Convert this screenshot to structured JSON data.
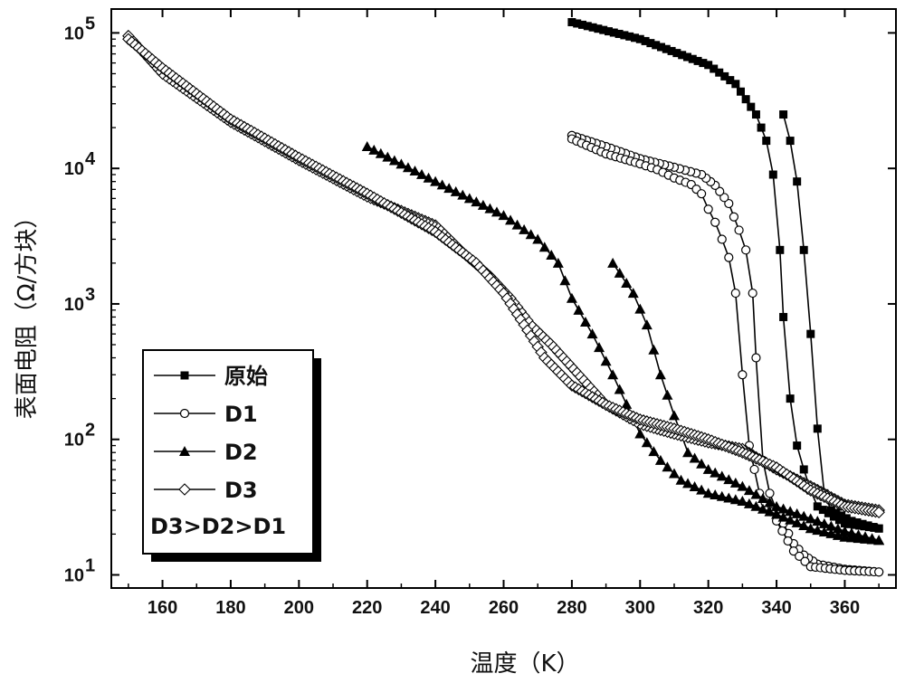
{
  "chart_data": {
    "type": "line",
    "xlabel": "温度（K）",
    "ylabel": "表面电阻（Ω/方块）",
    "xlim": [
      145,
      375
    ],
    "ylim": [
      8,
      150000
    ],
    "yscale": "log",
    "xticks": [
      160,
      180,
      200,
      220,
      240,
      260,
      280,
      300,
      320,
      340,
      360
    ],
    "yticks": [
      {
        "value": 10,
        "base": "10",
        "exp": "1"
      },
      {
        "value": 100,
        "base": "10",
        "exp": "2"
      },
      {
        "value": 1000,
        "base": "10",
        "exp": "3"
      },
      {
        "value": 10000,
        "base": "10",
        "exp": "4"
      },
      {
        "value": 100000,
        "base": "10",
        "exp": "5"
      }
    ],
    "legend": {
      "position": "lower-left",
      "note": "D3>D2>D1"
    },
    "series": [
      {
        "name": "原始",
        "marker": "square-filled",
        "step": 1.5,
        "heating": [
          [
            280,
            120000
          ],
          [
            300,
            90000
          ],
          [
            320,
            58000
          ],
          [
            328,
            42000
          ],
          [
            334,
            25000
          ],
          [
            337,
            16000
          ],
          [
            339,
            9000
          ],
          [
            341,
            2500
          ],
          [
            342,
            800
          ],
          [
            344,
            200
          ],
          [
            346,
            90
          ],
          [
            348,
            60
          ],
          [
            350,
            42
          ],
          [
            352,
            32
          ],
          [
            360,
            24
          ],
          [
            370,
            22
          ]
        ],
        "cooling": [
          [
            370,
            22
          ],
          [
            362,
            25
          ],
          [
            356,
            30
          ],
          [
            354,
            40
          ],
          [
            352,
            120
          ],
          [
            350,
            600
          ],
          [
            348,
            2500
          ],
          [
            346,
            8000
          ],
          [
            344,
            16000
          ],
          [
            342,
            25000
          ]
        ]
      },
      {
        "name": "D1",
        "marker": "circle-open",
        "step": 1.5,
        "heating": [
          [
            280,
            16500
          ],
          [
            290,
            12800
          ],
          [
            300,
            10800
          ],
          [
            305,
            9800
          ],
          [
            310,
            8500
          ],
          [
            315,
            7600
          ],
          [
            318,
            6500
          ],
          [
            320,
            5000
          ],
          [
            322,
            4000
          ],
          [
            324,
            3000
          ],
          [
            326,
            2200
          ],
          [
            328,
            1200
          ],
          [
            330,
            300
          ],
          [
            332,
            90
          ],
          [
            335,
            40
          ],
          [
            340,
            25
          ],
          [
            345,
            15
          ],
          [
            350,
            11.5
          ],
          [
            360,
            10.8
          ],
          [
            370,
            10.5
          ]
        ],
        "cooling": [
          [
            370,
            10.5
          ],
          [
            360,
            11
          ],
          [
            352,
            12
          ],
          [
            348,
            14
          ],
          [
            345,
            17
          ],
          [
            342,
            24
          ],
          [
            340,
            30
          ],
          [
            338,
            40
          ],
          [
            336,
            70
          ],
          [
            334,
            400
          ],
          [
            333,
            1200
          ],
          [
            331,
            2500
          ],
          [
            329,
            3500
          ],
          [
            326,
            5500
          ],
          [
            322,
            7500
          ],
          [
            318,
            9000
          ],
          [
            310,
            10200
          ],
          [
            300,
            11800
          ],
          [
            290,
            14500
          ],
          [
            280,
            17500
          ]
        ]
      },
      {
        "name": "D2",
        "marker": "triangle-filled",
        "step": 2,
        "heating": [
          [
            220,
            14500
          ],
          [
            240,
            8000
          ],
          [
            260,
            4500
          ],
          [
            270,
            3000
          ],
          [
            276,
            2000
          ],
          [
            280,
            1100
          ],
          [
            286,
            600
          ],
          [
            292,
            300
          ],
          [
            300,
            110
          ],
          [
            306,
            70
          ],
          [
            312,
            50
          ],
          [
            320,
            40
          ],
          [
            330,
            35
          ],
          [
            340,
            28
          ],
          [
            350,
            22
          ],
          [
            360,
            19
          ],
          [
            370,
            18
          ]
        ],
        "cooling": [
          [
            370,
            18
          ],
          [
            360,
            21
          ],
          [
            350,
            26
          ],
          [
            340,
            32
          ],
          [
            330,
            45
          ],
          [
            320,
            60
          ],
          [
            314,
            80
          ],
          [
            310,
            150
          ],
          [
            306,
            300
          ],
          [
            302,
            700
          ],
          [
            298,
            1200
          ],
          [
            292,
            2000
          ]
        ]
      },
      {
        "name": "D3",
        "marker": "diamond-open",
        "step": 1,
        "heating": [
          [
            150,
            90000
          ],
          [
            160,
            55000
          ],
          [
            180,
            23000
          ],
          [
            200,
            12000
          ],
          [
            220,
            6500
          ],
          [
            240,
            3400
          ],
          [
            252,
            2000
          ],
          [
            260,
            1200
          ],
          [
            266,
            700
          ],
          [
            272,
            400
          ],
          [
            280,
            250
          ],
          [
            290,
            180
          ],
          [
            300,
            140
          ],
          [
            310,
            120
          ],
          [
            320,
            100
          ],
          [
            330,
            80
          ],
          [
            340,
            62
          ],
          [
            350,
            42
          ],
          [
            360,
            32
          ],
          [
            370,
            29
          ]
        ],
        "cooling": [
          [
            370,
            30
          ],
          [
            360,
            33
          ],
          [
            350,
            45
          ],
          [
            340,
            60
          ],
          [
            330,
            85
          ],
          [
            320,
            95
          ],
          [
            310,
            110
          ],
          [
            300,
            130
          ],
          [
            290,
            180
          ],
          [
            282,
            300
          ],
          [
            274,
            500
          ],
          [
            268,
            700
          ],
          [
            262,
            1100
          ],
          [
            256,
            1600
          ],
          [
            248,
            2400
          ],
          [
            240,
            3800
          ],
          [
            220,
            6200
          ],
          [
            200,
            11500
          ],
          [
            180,
            22000
          ],
          [
            160,
            50000
          ],
          [
            150,
            95000
          ]
        ]
      }
    ]
  }
}
